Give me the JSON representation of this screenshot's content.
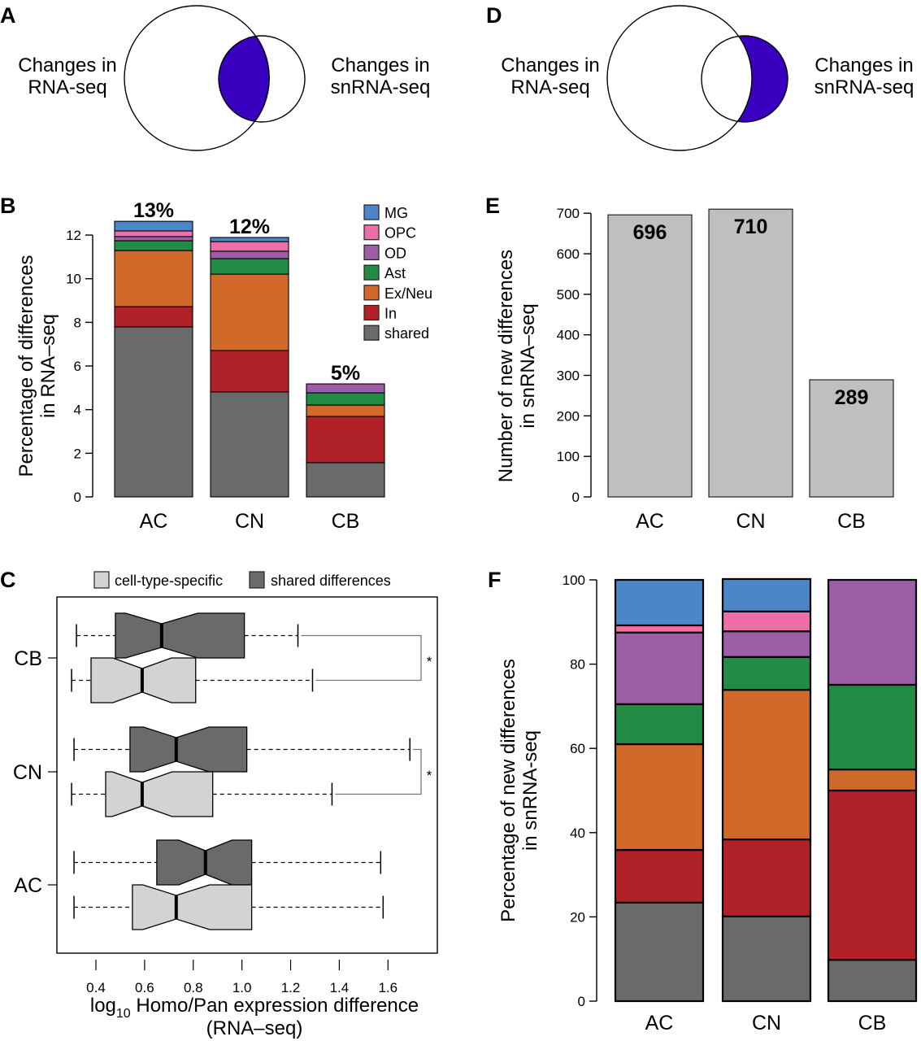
{
  "colors": {
    "MG": "#4a86c8",
    "OPC": "#ee6ea8",
    "OD": "#9c5ea7",
    "Ast": "#228b44",
    "Ex/Neu": "#d0692a",
    "In": "#b02227",
    "shared": "#6a6a6a",
    "venn_fill": "#3a00c0",
    "bar_gray": "#bfbfbf",
    "box_shared": "#6a6a6a",
    "box_specific": "#d3d3d3"
  },
  "panels": {
    "A": {
      "letter": "A",
      "left_label": [
        "Changes in",
        "RNA-seq"
      ],
      "right_label": [
        "Changes in",
        "snRNA-seq"
      ],
      "highlight": "intersection"
    },
    "D": {
      "letter": "D",
      "left_label": [
        "Changes in",
        "RNA-seq"
      ],
      "right_label": [
        "Changes in",
        "snRNA-seq"
      ],
      "highlight": "snRNA-seq only"
    }
  },
  "chart_data": [
    {
      "id": "B",
      "letter": "B",
      "type": "bar",
      "stacked": true,
      "title": "",
      "xlabel": "",
      "ylabel": [
        "Percentage of differences",
        "in RNA–seq"
      ],
      "categories": [
        "AC",
        "CN",
        "CB"
      ],
      "ylim": [
        0,
        12.7
      ],
      "yticks": [
        0,
        2,
        4,
        6,
        8,
        10,
        12
      ],
      "legend": [
        "MG",
        "OPC",
        "OD",
        "Ast",
        "Ex/Neu",
        "In",
        "shared"
      ],
      "legend_position": "top-right",
      "bar_labels": [
        "13%",
        "12%",
        "5%"
      ],
      "series": [
        {
          "name": "shared",
          "values": [
            7.79,
            4.81,
            1.57
          ]
        },
        {
          "name": "In",
          "values": [
            0.93,
            1.9,
            2.12
          ]
        },
        {
          "name": "Ex/Neu",
          "values": [
            2.57,
            3.5,
            0.52
          ]
        },
        {
          "name": "Ast",
          "values": [
            0.45,
            0.71,
            0.56
          ]
        },
        {
          "name": "OD",
          "values": [
            0.19,
            0.34,
            0.41
          ]
        },
        {
          "name": "OPC",
          "values": [
            0.26,
            0.44,
            0.0
          ]
        },
        {
          "name": "MG",
          "values": [
            0.44,
            0.19,
            0.0
          ]
        }
      ]
    },
    {
      "id": "C",
      "letter": "C",
      "type": "boxplot",
      "orientation": "horizontal",
      "notched": true,
      "xlabel": "log10 Homo/Pan expression difference (RNA–seq)",
      "xlabel_parts": {
        "pre": "log",
        "sub": "10",
        "post": " Homo/Pan expression difference",
        "line2": "(RNA–seq)"
      },
      "xlim": [
        0.27,
        1.78
      ],
      "xticks": [
        "0.4",
        "0.6",
        "0.8",
        "1.0",
        "1.2",
        "1.4",
        "1.6"
      ],
      "categories": [
        "CB",
        "CN",
        "AC"
      ],
      "legend": [
        "cell-type-specific",
        "shared differences"
      ],
      "legend_position": "top",
      "series": [
        {
          "name": "shared differences",
          "boxes": [
            {
              "category": "CB",
              "whisker_low": 0.32,
              "q1": 0.48,
              "median": 0.67,
              "q3": 1.01,
              "whisker_high": 1.23
            },
            {
              "category": "CN",
              "whisker_low": 0.31,
              "q1": 0.54,
              "median": 0.73,
              "q3": 1.02,
              "whisker_high": 1.69
            },
            {
              "category": "AC",
              "whisker_low": 0.31,
              "q1": 0.65,
              "median": 0.85,
              "q3": 1.04,
              "whisker_high": 1.57
            }
          ]
        },
        {
          "name": "cell-type-specific",
          "boxes": [
            {
              "category": "CB",
              "whisker_low": 0.3,
              "q1": 0.38,
              "median": 0.59,
              "q3": 0.81,
              "whisker_high": 1.29
            },
            {
              "category": "CN",
              "whisker_low": 0.3,
              "q1": 0.44,
              "median": 0.59,
              "q3": 0.88,
              "whisker_high": 1.37
            },
            {
              "category": "AC",
              "whisker_low": 0.31,
              "q1": 0.55,
              "median": 0.73,
              "q3": 1.04,
              "whisker_high": 1.58
            }
          ]
        }
      ],
      "significance": [
        {
          "category": "CB",
          "mark": "*"
        },
        {
          "category": "CN",
          "mark": "*"
        }
      ]
    },
    {
      "id": "E",
      "letter": "E",
      "type": "bar",
      "title": "",
      "xlabel": "",
      "ylabel": [
        "Number of new differences",
        "in snRNA–seq"
      ],
      "categories": [
        "AC",
        "CN",
        "CB"
      ],
      "values": [
        696,
        710,
        289
      ],
      "bar_labels": [
        "696",
        "710",
        "289"
      ],
      "ylim": [
        0,
        710
      ],
      "yticks": [
        0,
        100,
        200,
        300,
        400,
        500,
        600,
        700
      ]
    },
    {
      "id": "F",
      "letter": "F",
      "type": "bar",
      "stacked": true,
      "title": "",
      "xlabel": "",
      "ylabel": [
        "Percentage of new differences",
        "in snRNA-seq"
      ],
      "categories": [
        "AC",
        "CN",
        "CB"
      ],
      "ylim": [
        0,
        100
      ],
      "yticks": [
        0,
        20,
        40,
        60,
        80,
        100
      ],
      "series": [
        {
          "name": "shared",
          "values": [
            23.4,
            20.1,
            9.8
          ]
        },
        {
          "name": "In",
          "values": [
            12.5,
            18.3,
            40.2
          ]
        },
        {
          "name": "Ex/Neu",
          "values": [
            25.1,
            35.5,
            5.0
          ]
        },
        {
          "name": "Ast",
          "values": [
            9.5,
            7.8,
            20.1
          ]
        },
        {
          "name": "OD",
          "values": [
            17.0,
            6.1,
            24.9
          ]
        },
        {
          "name": "OPC",
          "values": [
            1.7,
            4.7,
            0.0
          ]
        },
        {
          "name": "MG",
          "values": [
            10.8,
            7.7,
            0.0
          ]
        }
      ]
    }
  ]
}
